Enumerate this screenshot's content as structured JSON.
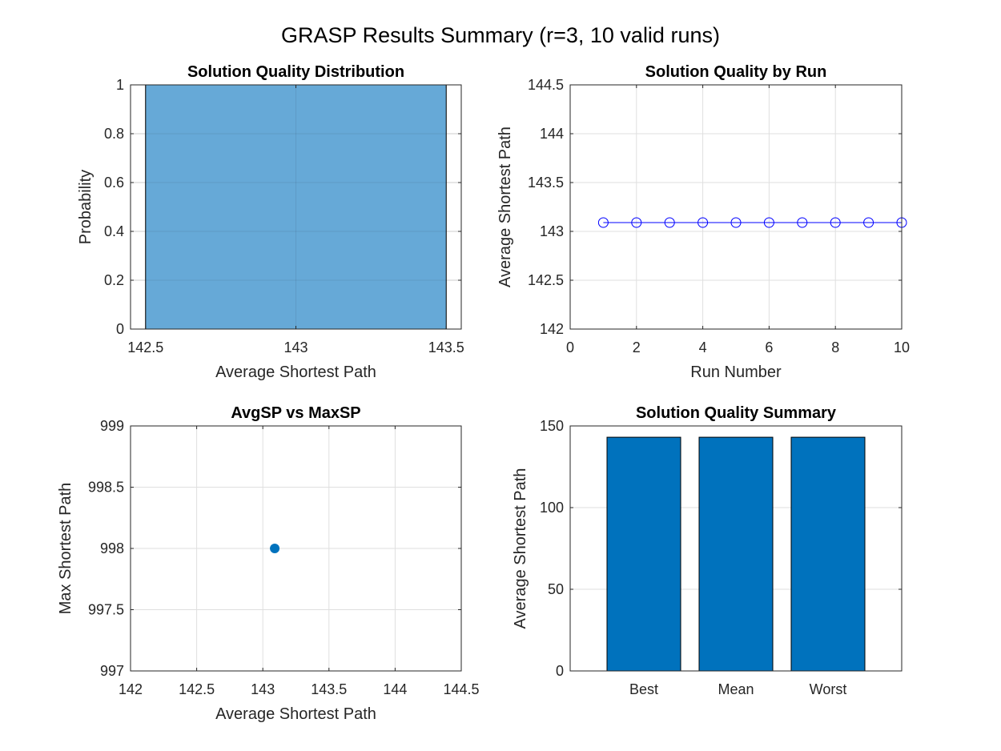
{
  "figure": {
    "title": "GRASP Results Summary (r=3, 10 valid runs)"
  },
  "chart_data": [
    {
      "id": "hist",
      "type": "bar",
      "title": "Solution Quality Distribution",
      "xlabel": "Average Shortest Path",
      "ylabel": "Probability",
      "xlim": [
        142.45,
        143.55
      ],
      "ylim": [
        0,
        1
      ],
      "xticks": [
        142.5,
        143,
        143.5
      ],
      "xtick_labels": [
        "142.5",
        "143",
        "143.5"
      ],
      "yticks": [
        0,
        0.2,
        0.4,
        0.6,
        0.8,
        1
      ],
      "ytick_labels": [
        "0",
        "0.2",
        "0.4",
        "0.6",
        "0.8",
        "1"
      ],
      "bins": [
        {
          "start": 142.5,
          "end": 143.5,
          "value": 1
        }
      ],
      "grid": true,
      "color": "#66a9d7"
    },
    {
      "id": "line",
      "type": "line",
      "title": "Solution Quality by Run",
      "xlabel": "Run Number",
      "ylabel": "Average Shortest Path",
      "xlim": [
        0,
        10
      ],
      "ylim": [
        142,
        144.5
      ],
      "xticks": [
        0,
        2,
        4,
        6,
        8,
        10
      ],
      "xtick_labels": [
        "0",
        "2",
        "4",
        "6",
        "8",
        "10"
      ],
      "yticks": [
        142,
        142.5,
        143,
        143.5,
        144,
        144.5
      ],
      "ytick_labels": [
        "142",
        "142.5",
        "143",
        "143.5",
        "144",
        "144.5"
      ],
      "x": [
        1,
        2,
        3,
        4,
        5,
        6,
        7,
        8,
        9,
        10
      ],
      "y": [
        143.09,
        143.09,
        143.09,
        143.09,
        143.09,
        143.09,
        143.09,
        143.09,
        143.09,
        143.09
      ],
      "marker": "circle",
      "grid": true,
      "color": "#0000ff"
    },
    {
      "id": "scatter",
      "type": "scatter",
      "title": "AvgSP vs MaxSP",
      "xlabel": "Average Shortest Path",
      "ylabel": "Max Shortest Path",
      "xlim": [
        142,
        144.5
      ],
      "ylim": [
        997,
        999
      ],
      "xticks": [
        142,
        142.5,
        143,
        143.5,
        144,
        144.5
      ],
      "xtick_labels": [
        "142",
        "142.5",
        "143",
        "143.5",
        "144",
        "144.5"
      ],
      "yticks": [
        997,
        997.5,
        998,
        998.5,
        999
      ],
      "ytick_labels": [
        "997",
        "997.5",
        "998",
        "998.5",
        "999"
      ],
      "points": [
        {
          "x": 143.09,
          "y": 998
        }
      ],
      "grid": true,
      "color": "#0072bd"
    },
    {
      "id": "summary",
      "type": "bar",
      "title": "Solution Quality Summary",
      "xlabel": "",
      "ylabel": "Average Shortest Path",
      "categories": [
        "Best",
        "Mean",
        "Worst"
      ],
      "values": [
        143.09,
        143.09,
        143.09
      ],
      "ylim": [
        0,
        150
      ],
      "yticks": [
        0,
        50,
        100,
        150
      ],
      "ytick_labels": [
        "0",
        "50",
        "100",
        "150"
      ],
      "grid": true,
      "color": "#0072bd"
    }
  ]
}
